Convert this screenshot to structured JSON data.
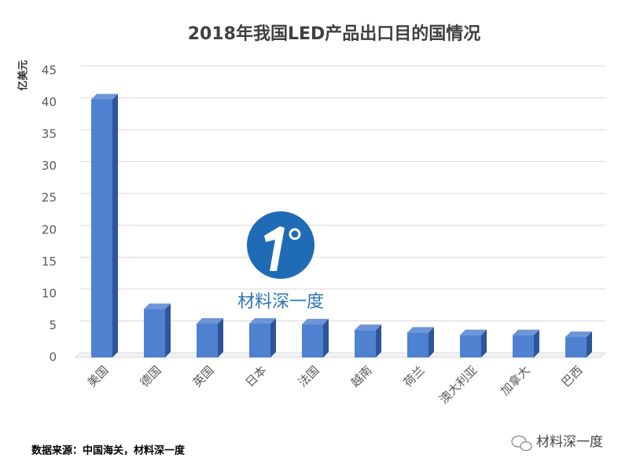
{
  "chart_data": {
    "type": "bar",
    "title": "2018年我国LED产品出口目的国情况",
    "y_label": "亿美元",
    "categories": [
      "美国",
      "德国",
      "英国",
      "日本",
      "法国",
      "越南",
      "荷兰",
      "澳大利亚",
      "加拿大",
      "巴西"
    ],
    "values": [
      40.5,
      7.6,
      5.3,
      5.3,
      5.2,
      4.3,
      3.9,
      3.5,
      3.5,
      3.2
    ],
    "color": "#4f81d1",
    "ylim": [
      0,
      45
    ],
    "yticks": [
      0,
      5,
      10,
      15,
      20,
      25,
      30,
      35,
      40,
      45
    ],
    "grid": true
  },
  "source": "数据来源：中国海关，材料深一度",
  "watermark": "材料深一度",
  "wechat_watermark": "材料深一度"
}
